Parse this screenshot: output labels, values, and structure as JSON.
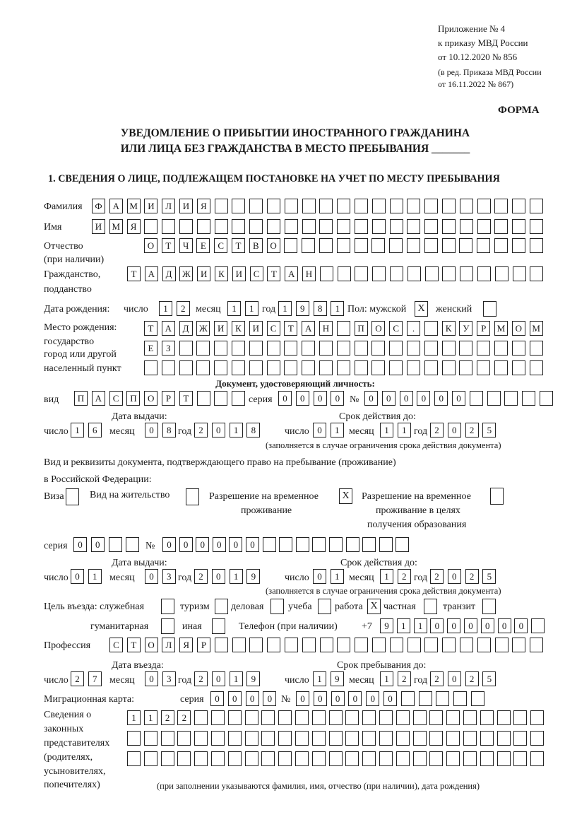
{
  "header": {
    "line1": "Приложение № 4",
    "line2": "к приказу МВД России",
    "line3": "от 10.12.2020 № 856",
    "line4": "(в ред. Приказа МВД России",
    "line5": "от 16.11.2022 № 867)",
    "form_label": "ФОРМА"
  },
  "title": {
    "line1": "УВЕДОМЛЕНИЕ О ПРИБЫТИИ ИНОСТРАННОГО ГРАЖДАНИНА",
    "line2": "ИЛИ ЛИЦА БЕЗ ГРАЖДАНСТВА В МЕСТО ПРЕБЫВАНИЯ _______"
  },
  "section1": {
    "heading": "1. СВЕДЕНИЯ О ЛИЦЕ, ПОДЛЕЖАЩЕМ ПОСТАНОВКЕ НА УЧЕТ ПО МЕСТУ ПРЕБЫВАНИЯ",
    "surname": {
      "label": "Фамилия",
      "value": "ФАМИЛИЯ"
    },
    "name": {
      "label": "Имя",
      "value": "ИМЯ"
    },
    "patronymic": {
      "label": "Отчество",
      "label2": "(при наличии)",
      "value": "ОТЧЕСТВО"
    },
    "citizenship": {
      "label": "Гражданство,",
      "label2": "подданство",
      "value": "ТАДЖИКИСТАН"
    },
    "birth_date": {
      "label": "Дата рождения:",
      "day_label": "число",
      "month_label": "месяц",
      "year_label": "год",
      "day": "12",
      "month": "11",
      "year": "1981"
    },
    "sex": {
      "label": "Пол: мужской",
      "female_label": "женский",
      "male_mark": "X",
      "female_mark": ""
    },
    "birth_place": {
      "label1": "Место рождения:",
      "label2": "государство",
      "label3": "город или другой",
      "label4": "населенный пункт",
      "row1": "ТАДЖИКИСТАН ПОС. КУРМОМБ",
      "row2": "ЕЗ",
      "row3": ""
    },
    "id_doc": {
      "heading": "Документ, удостоверяющий личность:",
      "type_label": "вид",
      "type": "ПАСПОРТ",
      "series_label": "серия",
      "series": "0000",
      "number_label": "№",
      "number": "000000",
      "issue_label": "Дата выдачи:",
      "valid_label": "Срок действия до:",
      "day_label": "число",
      "month_label": "месяц",
      "year_label": "год",
      "issue_day": "16",
      "issue_month": "08",
      "issue_year": "2018",
      "valid_day": "01",
      "valid_month": "11",
      "valid_year": "2025",
      "note": "(заполняется в случае ограничения срока действия документа)"
    },
    "stay_doc": {
      "heading1": "Вид и реквизиты документа, подтверждающего право на пребывание (проживание)",
      "heading2": "в Российской Федерации:",
      "visa_label": "Виза",
      "visa_mark": "",
      "residence_label": "Вид на жительство",
      "residence_mark": "",
      "temp_label1": "Разрешение на временное",
      "temp_label2": "проживание",
      "temp_mark": "X",
      "edu_label1": "Разрешение на временное",
      "edu_label2": "проживание в целях",
      "edu_label3": "получения образования",
      "edu_mark": "",
      "series_label": "серия",
      "series": "00",
      "number_label": "№",
      "number": "000000",
      "issue_label": "Дата выдачи:",
      "valid_label": "Срок действия до:",
      "day_label": "число",
      "month_label": "месяц",
      "year_label": "год",
      "issue_day": "01",
      "issue_month": "03",
      "issue_year": "2019",
      "valid_day": "01",
      "valid_month": "12",
      "valid_year": "2025",
      "note": "(заполняется в случае ограничения срока действия документа)"
    },
    "purpose": {
      "label": "Цель въезда: служебная",
      "options": [
        {
          "label": "туризм",
          "mark": ""
        },
        {
          "label": "деловая",
          "mark": ""
        },
        {
          "label": "учеба",
          "mark": ""
        },
        {
          "label": "работа",
          "mark": "X"
        },
        {
          "label": "частная",
          "mark": ""
        },
        {
          "label": "транзит",
          "mark": ""
        },
        {
          "label": "гуманитарная",
          "mark": ""
        },
        {
          "label": "иная",
          "mark": ""
        }
      ],
      "official_mark": "",
      "other_mark": ""
    },
    "phone": {
      "label": "Телефон (при наличии)",
      "prefix": "+7",
      "value": "911000000"
    },
    "profession": {
      "label": "Профессия",
      "value": "СТОЛЯР"
    },
    "entry": {
      "entry_label": "Дата въезда:",
      "stay_label": "Срок пребывания до:",
      "day_label": "число",
      "month_label": "месяц",
      "year_label": "год",
      "entry_day": "27",
      "entry_month": "03",
      "entry_year": "2019",
      "stay_day": "19",
      "stay_month": "12",
      "stay_year": "2025"
    },
    "migration_card": {
      "label": "Миграционная карта:",
      "series_label": "серия",
      "series": "0000",
      "number_label": "№",
      "number": "000000"
    },
    "representatives": {
      "label1": "Сведения о",
      "label2": "законных",
      "label3": "представителях",
      "label4": "(родителях,",
      "label5": "усыновителях,",
      "label6": "попечителях)",
      "row1": "1122",
      "row2": "",
      "row3": "",
      "note": "(при заполнении указываются фамилия, имя, отчество (при наличии), дата рождения)"
    }
  }
}
